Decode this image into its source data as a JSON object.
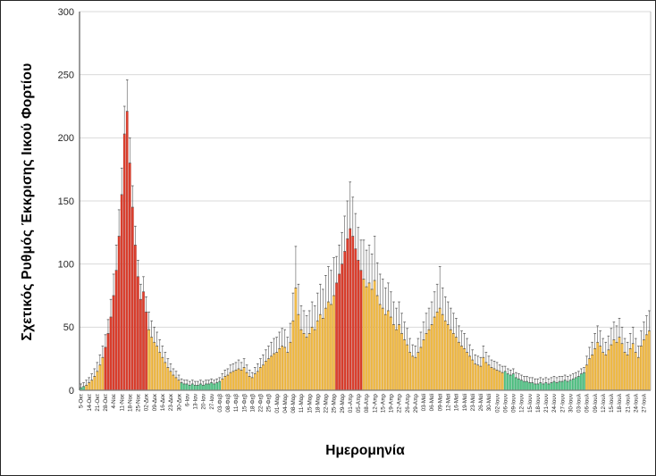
{
  "chart_data": {
    "type": "bar",
    "title": "",
    "xlabel": "Ημερομηνία",
    "ylabel": "Σχετικός Ρυθμός Έκκρισης Ιικού Φορτίου",
    "ylim": [
      0,
      300
    ],
    "yticks": [
      0,
      50,
      100,
      150,
      200,
      250,
      300
    ],
    "grid": true,
    "legend": null,
    "x_tick_labels": [
      "5-Οκτ",
      "14-Οκτ",
      "21-Οκτ",
      "28-Οκτ",
      "4-Νοε",
      "11-Νοε",
      "18-Νοε",
      "25-Νοε",
      "02-Δεκ",
      "09-Δεκ",
      "16-Δεκ",
      "23-Δεκ",
      "30-Δεκ",
      "6-Ιαν",
      "13-Ιαν",
      "20-Ιαν",
      "27-Ιαν",
      "03-Φεβ",
      "08-Φεβ",
      "11-Φεβ",
      "15-Φεβ",
      "18-Φεβ",
      "22-Φεβ",
      "25-Φεβ",
      "01-Μαρ",
      "04-Μαρ",
      "08-Μαρ",
      "11-Μαρ",
      "15-Μαρ",
      "18-Μαρ",
      "22-Μαρ",
      "25-Μαρ",
      "29-Μαρ",
      "01-Απρ",
      "05-Απρ",
      "08-Απρ",
      "12-Απρ",
      "15-Απρ",
      "19-Απρ",
      "22-Απρ",
      "26-Απρ",
      "29-Απρ",
      "03-Μαϊ",
      "06-Μαϊ",
      "09-Μαϊ",
      "12-Μαϊ",
      "16-Μαϊ",
      "19-Μαϊ",
      "23-Μαϊ",
      "26-Μαϊ",
      "30-Μαϊ",
      "02-Ιουν",
      "06-Ιουν",
      "09-Ιουν",
      "12-Ιουν",
      "15-Ιουν",
      "18-Ιουν",
      "21-Ιουν",
      "24-Ιουν",
      "27-Ιουν",
      "30-Ιουν",
      "03-Ιουλ",
      "06-Ιουλ",
      "09-Ιουλ",
      "12-Ιουλ",
      "15-Ιουλ",
      "18-Ιουλ",
      "21-Ιουλ",
      "24-Ιουλ",
      "27-Ιουλ"
    ],
    "x_label_every_n_bars": 3,
    "bar_count": 210,
    "values": [
      2,
      3,
      4,
      6,
      8,
      11,
      15,
      20,
      26,
      34,
      45,
      58,
      75,
      95,
      122,
      155,
      203,
      221,
      180,
      145,
      115,
      90,
      72,
      78,
      62,
      48,
      42,
      38,
      35,
      30,
      26,
      22,
      18,
      15,
      12,
      10,
      8,
      6,
      5,
      5,
      4,
      5,
      4,
      4,
      5,
      4,
      5,
      5,
      6,
      5,
      6,
      7,
      9,
      11,
      12,
      14,
      15,
      16,
      17,
      16,
      18,
      14,
      11,
      10,
      13,
      15,
      18,
      20,
      23,
      25,
      27,
      29,
      30,
      33,
      35,
      34,
      30,
      38,
      55,
      81,
      60,
      48,
      45,
      42,
      45,
      50,
      48,
      55,
      60,
      57,
      65,
      70,
      68,
      75,
      85,
      92,
      100,
      110,
      120,
      128,
      122,
      112,
      103,
      95,
      88,
      82,
      85,
      80,
      87,
      75,
      68,
      65,
      60,
      63,
      58,
      52,
      48,
      52,
      45,
      40,
      36,
      30,
      27,
      26,
      30,
      34,
      40,
      45,
      48,
      52,
      58,
      62,
      65,
      60,
      55,
      52,
      48,
      45,
      42,
      38,
      35,
      33,
      30,
      27,
      24,
      21,
      20,
      19,
      26,
      22,
      20,
      18,
      17,
      16,
      15,
      14,
      15,
      13,
      12,
      13,
      10,
      9,
      8,
      7,
      7,
      6,
      6,
      5,
      5,
      6,
      5,
      6,
      5,
      6,
      7,
      6,
      7,
      7,
      8,
      7,
      8,
      9,
      10,
      11,
      13,
      14,
      20,
      25,
      28,
      33,
      38,
      35,
      30,
      28,
      32,
      36,
      40,
      38,
      42,
      37,
      30,
      28,
      33,
      37,
      30,
      26,
      35,
      40,
      44,
      47
    ],
    "error_upper": [
      5,
      6,
      8,
      10,
      13,
      17,
      22,
      28,
      35,
      44,
      56,
      72,
      92,
      115,
      143,
      176,
      225,
      246,
      200,
      162,
      130,
      103,
      84,
      90,
      74,
      62,
      55,
      50,
      46,
      40,
      35,
      30,
      25,
      21,
      17,
      15,
      12,
      9,
      8,
      8,
      7,
      8,
      7,
      7,
      8,
      7,
      8,
      8,
      9,
      8,
      9,
      10,
      13,
      16,
      17,
      20,
      21,
      22,
      24,
      22,
      25,
      20,
      16,
      14,
      18,
      21,
      25,
      28,
      32,
      35,
      38,
      41,
      42,
      46,
      49,
      48,
      42,
      53,
      77,
      114,
      84,
      67,
      63,
      59,
      63,
      70,
      67,
      77,
      84,
      80,
      91,
      98,
      95,
      105,
      106,
      115,
      125,
      138,
      150,
      165,
      153,
      140,
      129,
      119,
      119,
      111,
      115,
      108,
      122,
      101,
      92,
      88,
      81,
      85,
      78,
      70,
      65,
      70,
      61,
      54,
      49,
      41,
      36,
      35,
      41,
      46,
      54,
      61,
      65,
      70,
      78,
      84,
      98,
      81,
      74,
      70,
      65,
      61,
      57,
      51,
      47,
      45,
      41,
      36,
      32,
      28,
      27,
      26,
      35,
      30,
      27,
      24,
      23,
      22,
      20,
      19,
      19,
      17,
      16,
      17,
      14,
      13,
      12,
      11,
      11,
      10,
      10,
      9,
      9,
      10,
      9,
      10,
      9,
      10,
      11,
      10,
      11,
      11,
      12,
      11,
      12,
      13,
      14,
      15,
      17,
      18,
      27,
      34,
      38,
      45,
      51,
      47,
      41,
      38,
      43,
      49,
      54,
      51,
      57,
      50,
      41,
      38,
      45,
      50,
      41,
      35,
      47,
      54,
      59,
      63
    ],
    "color_runs": [
      [
        2,
        "g"
      ],
      [
        7,
        "y"
      ],
      [
        16,
        "r"
      ],
      [
        12,
        "y"
      ],
      [
        15,
        "g"
      ],
      [
        42,
        "y"
      ],
      [
        10,
        "r"
      ],
      [
        52,
        "y"
      ],
      [
        30,
        "g"
      ],
      [
        24,
        "y"
      ]
    ],
    "color_map": {
      "g": "#5FC98E",
      "y": "#F3C04A",
      "r": "#E0412E"
    },
    "border_map": {
      "g": "#2E9E63",
      "y": "#D1932F",
      "r": "#B3271D"
    },
    "error_bar_color": "#595959",
    "gridline_color": "#D9D9D9",
    "axis_color": "#7F7F7F",
    "tick_label_color": "#262626"
  }
}
